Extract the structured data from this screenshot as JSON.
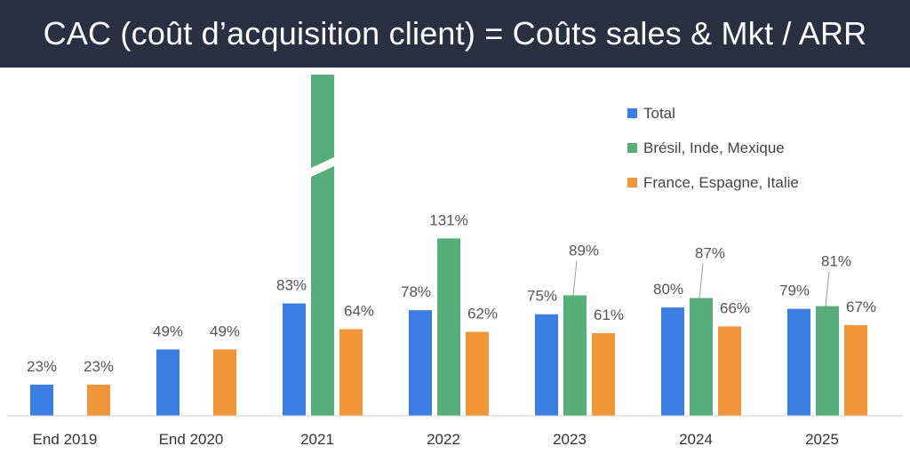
{
  "title": "CAC (coût d’acquisition client) = Coûts sales & Mkt / ARR",
  "chart_data": {
    "type": "bar",
    "title": "CAC (coût d’acquisition client) = Coûts sales & Mkt / ARR",
    "categories": [
      "End 2019",
      "End 2020",
      "2021",
      "2022",
      "2023",
      "2024",
      "2025"
    ],
    "series": [
      {
        "name": "Total",
        "color": "#3b7de0",
        "values": [
          23,
          49,
          83,
          null,
          null,
          null,
          null
        ],
        "values_full": [
          23,
          49,
          83,
          78,
          75,
          80,
          79
        ],
        "labels": [
          "23%",
          "49%",
          "83%",
          "78%",
          "75%",
          "80%",
          "79%"
        ]
      },
      {
        "name": "Brésil, Inde, Mexique",
        "color": "#57ae7a",
        "values": [
          null,
          null,
          null,
          131,
          89,
          87,
          81
        ],
        "labels": [
          "",
          "",
          "",
          "131%",
          "89%",
          "87%",
          "81%"
        ],
        "note": "2021 bar truncated with axis break (off-scale, no label shown)"
      },
      {
        "name": "France, Espagne, Italie",
        "color": "#f0953a",
        "values": [
          23,
          49,
          64,
          62,
          61,
          66,
          67
        ],
        "labels": [
          "23%",
          "49%",
          "64%",
          "62%",
          "61%",
          "66%",
          "67%"
        ]
      }
    ],
    "ylim": [
      0,
      160
    ],
    "grid": false,
    "legend": "top-right",
    "xlabel": "",
    "ylabel": ""
  }
}
